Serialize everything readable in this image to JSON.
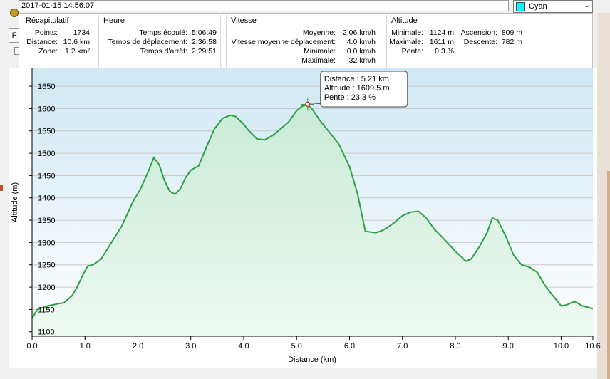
{
  "header": {
    "datetime": "2017-01-15 14:56:07",
    "color_value": "Cyan",
    "color_hex": "#00ffff",
    "left_tab_label": "F"
  },
  "summary": {
    "title": "Récapitulatif",
    "items": [
      {
        "label": "Points:",
        "value": "1734"
      },
      {
        "label": "Distance:",
        "value": "10.6 km"
      },
      {
        "label": "Zone:",
        "value": "1.2 km²"
      }
    ]
  },
  "time": {
    "title": "Heure",
    "items": [
      {
        "label": "Temps écoulé:",
        "value": "5:06:49"
      },
      {
        "label": "Temps de déplacement:",
        "value": "2:36:58"
      },
      {
        "label": "Temps d'arrêt:",
        "value": "2:29:51"
      }
    ]
  },
  "speed": {
    "title": "Vitesse",
    "items": [
      {
        "label": "Moyenne:",
        "value": "2.06 km/h"
      },
      {
        "label": "Vitesse moyenne déplacement:",
        "value": "4.0 km/h"
      },
      {
        "label": "Minimale:",
        "value": "0.0 km/h"
      },
      {
        "label": "Maximale:",
        "value": "32 km/h"
      }
    ]
  },
  "altitude": {
    "title": "Altitude",
    "items": [
      {
        "label": "Minimale:",
        "value": "1124 m"
      },
      {
        "label": "Maximale:",
        "value": "1611 m"
      },
      {
        "label": "Pente:",
        "value": "0.3 %"
      }
    ],
    "items2": [
      {
        "label": "Ascension:",
        "value": "809 m"
      },
      {
        "label": "Descente:",
        "value": "782 m"
      }
    ]
  },
  "chart_data": {
    "type": "area",
    "xlabel": "Distance  (km)",
    "ylabel": "Altitude (m)",
    "xlim": [
      0,
      10.6
    ],
    "ylim": [
      1090,
      1690
    ],
    "x_ticks": [
      0.0,
      1.0,
      2.0,
      3.0,
      4.0,
      5.0,
      6.0,
      7.0,
      8.0,
      9.0,
      10.0,
      10.6
    ],
    "x_tick_labels": [
      "0.0",
      "1.0",
      "2.0",
      "3.0",
      "4.0",
      "5.0",
      "6.0",
      "7.0",
      "8.0",
      "9.0",
      "10.0",
      "10.6"
    ],
    "y_ticks": [
      1100,
      1150,
      1200,
      1250,
      1300,
      1350,
      1400,
      1450,
      1500,
      1550,
      1600,
      1650
    ],
    "y_tick_labels": [
      "1100",
      "1150",
      "1200",
      "1250",
      "1300",
      "1350",
      "1400",
      "1450",
      "1500",
      "1550",
      "1600",
      "1650"
    ],
    "grid": true,
    "line_color": "#2ea043",
    "series": [
      {
        "x": [
          0.0,
          0.1,
          0.3,
          0.5,
          0.6,
          0.75,
          0.85,
          0.95,
          1.05,
          1.15,
          1.3,
          1.5,
          1.7,
          1.9,
          2.05,
          2.2,
          2.3,
          2.4,
          2.5,
          2.6,
          2.7,
          2.8,
          2.9,
          3.0,
          3.15,
          3.3,
          3.45,
          3.6,
          3.75,
          3.85,
          4.0,
          4.1,
          4.25,
          4.4,
          4.55,
          4.7,
          4.85,
          5.0,
          5.1,
          5.2,
          5.3,
          5.45,
          5.6,
          5.8,
          6.0,
          6.15,
          6.3,
          6.5,
          6.6,
          6.7,
          6.85,
          7.0,
          7.15,
          7.3,
          7.45,
          7.6,
          7.8,
          8.0,
          8.2,
          8.3,
          8.45,
          8.6,
          8.7,
          8.8,
          8.95,
          9.1,
          9.25,
          9.4,
          9.55,
          9.7,
          9.85,
          10.0,
          10.1,
          10.25,
          10.4,
          10.6
        ],
        "y": [
          1130,
          1150,
          1158,
          1163,
          1165,
          1180,
          1200,
          1225,
          1247,
          1250,
          1262,
          1300,
          1338,
          1390,
          1420,
          1460,
          1490,
          1475,
          1440,
          1415,
          1408,
          1420,
          1445,
          1462,
          1472,
          1515,
          1555,
          1578,
          1585,
          1582,
          1565,
          1550,
          1532,
          1530,
          1540,
          1555,
          1570,
          1595,
          1605,
          1609,
          1598,
          1572,
          1550,
          1520,
          1470,
          1410,
          1325,
          1322,
          1326,
          1332,
          1345,
          1360,
          1368,
          1370,
          1355,
          1330,
          1306,
          1280,
          1258,
          1263,
          1290,
          1322,
          1355,
          1350,
          1315,
          1272,
          1250,
          1245,
          1233,
          1203,
          1180,
          1158,
          1160,
          1168,
          1158,
          1152
        ]
      }
    ],
    "tooltip": {
      "lines": [
        "Distance : 5.21 km",
        "Altitude : 1609.5 m",
        "Pente : 23.3 %"
      ],
      "x": 5.21,
      "y": 1609.5
    }
  }
}
